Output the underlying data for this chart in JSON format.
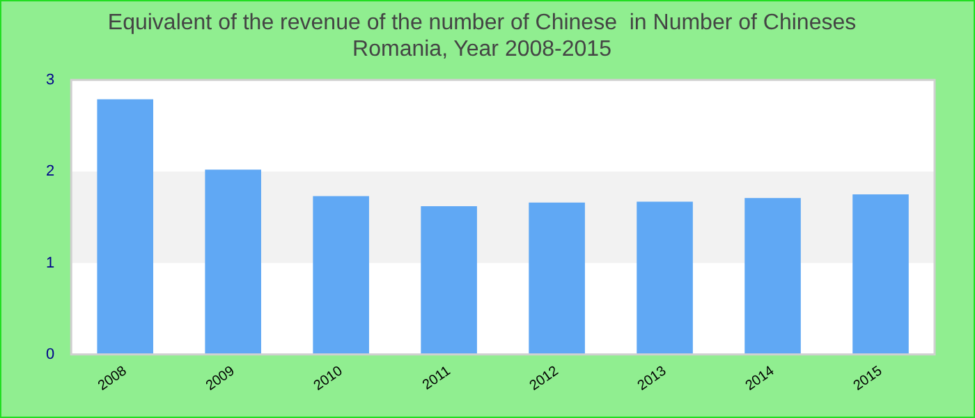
{
  "chart_data": {
    "type": "bar",
    "title": "Equivalent of the revenue of the number of Chinese  in Number of Chineses\nRomania, Year 2008-2015",
    "categories": [
      "2008",
      "2009",
      "2010",
      "2011",
      "2012",
      "2013",
      "2014",
      "2015"
    ],
    "values": [
      2.79,
      2.02,
      1.73,
      1.62,
      1.66,
      1.67,
      1.71,
      1.75
    ],
    "color": "#60a8f4",
    "ylim": [
      0,
      3
    ],
    "yticks": [
      0,
      1,
      2,
      3
    ],
    "grid": false,
    "legend": false,
    "bands": [
      {
        "axis": "y",
        "from": 1,
        "to": 2,
        "color": "#f2f2f2"
      }
    ]
  }
}
